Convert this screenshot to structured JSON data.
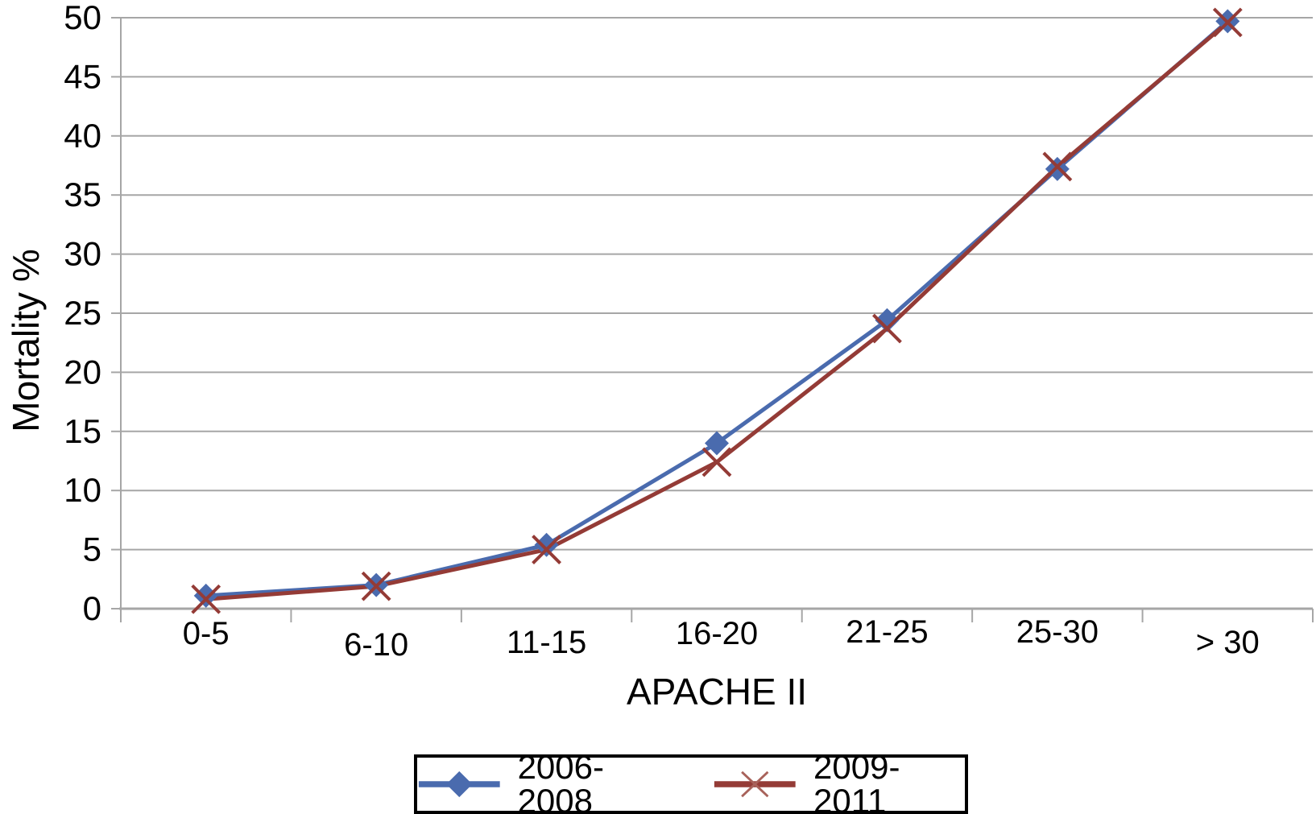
{
  "chart_data": {
    "type": "line",
    "title": "",
    "xlabel": "APACHE II",
    "ylabel": "Mortality %",
    "categories": [
      "0-5",
      "6-10",
      "11-15",
      "16-20",
      "21-25",
      "25-30",
      "> 30"
    ],
    "series": [
      {
        "name": "2006-2008",
        "marker": "diamond",
        "color": "#4a6bae",
        "values": [
          1.1,
          2.0,
          5.4,
          14.0,
          24.4,
          37.2,
          49.7
        ]
      },
      {
        "name": "2009-2011",
        "marker": "x",
        "color": "#943b36",
        "values": [
          0.8,
          1.9,
          5.0,
          12.4,
          23.7,
          37.4,
          49.6
        ]
      }
    ],
    "ylim": [
      0,
      50
    ],
    "yticks": [
      0,
      5,
      10,
      15,
      20,
      25,
      30,
      35,
      40,
      45,
      50
    ],
    "grid": true,
    "legend_position": "bottom"
  },
  "colors": {
    "series1": "#4a6bae",
    "series2": "#943b36",
    "legend_x_marker": "#a8625a",
    "gridline": "#a6a6a6",
    "axis": "#a6a6a6",
    "text": "#000000",
    "legend_border": "#000000"
  }
}
